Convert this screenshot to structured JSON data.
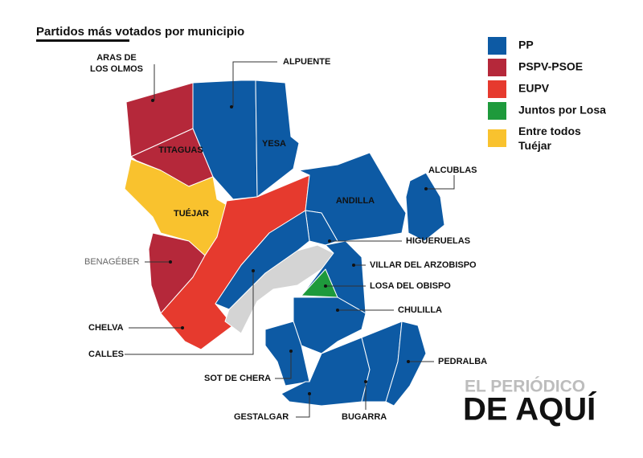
{
  "title": "Partidos más votados por municipio",
  "legend": [
    {
      "label": "PP",
      "color": "#0d5aa4"
    },
    {
      "label": "PSPV-PSOE",
      "color": "#b5283a"
    },
    {
      "label": "EUPV",
      "color": "#e63a2e"
    },
    {
      "label": "Juntos por Losa",
      "color": "#1e9a3c"
    },
    {
      "label": "Entre todos Tuéjar",
      "color": "#f9c22e"
    }
  ],
  "municipalities": [
    "ARAS DE LOS OLMOS",
    "ALPUENTE",
    "TITAGUAS",
    "YESA",
    "TUÉJAR",
    "ANDILLA",
    "ALCUBLAS",
    "HIGUERUELAS",
    "BENAGÉBER",
    "VILLAR DEL ARZOBISPO",
    "LOSA DEL OBISPO",
    "CHULILLA",
    "CHELVA",
    "CALLES",
    "PEDRALBA",
    "SOT DE CHERA",
    "GESTALGAR",
    "BUGARRA"
  ],
  "logo": {
    "top": "EL PERIÓDICO",
    "bottom": "DE AQUÍ"
  }
}
